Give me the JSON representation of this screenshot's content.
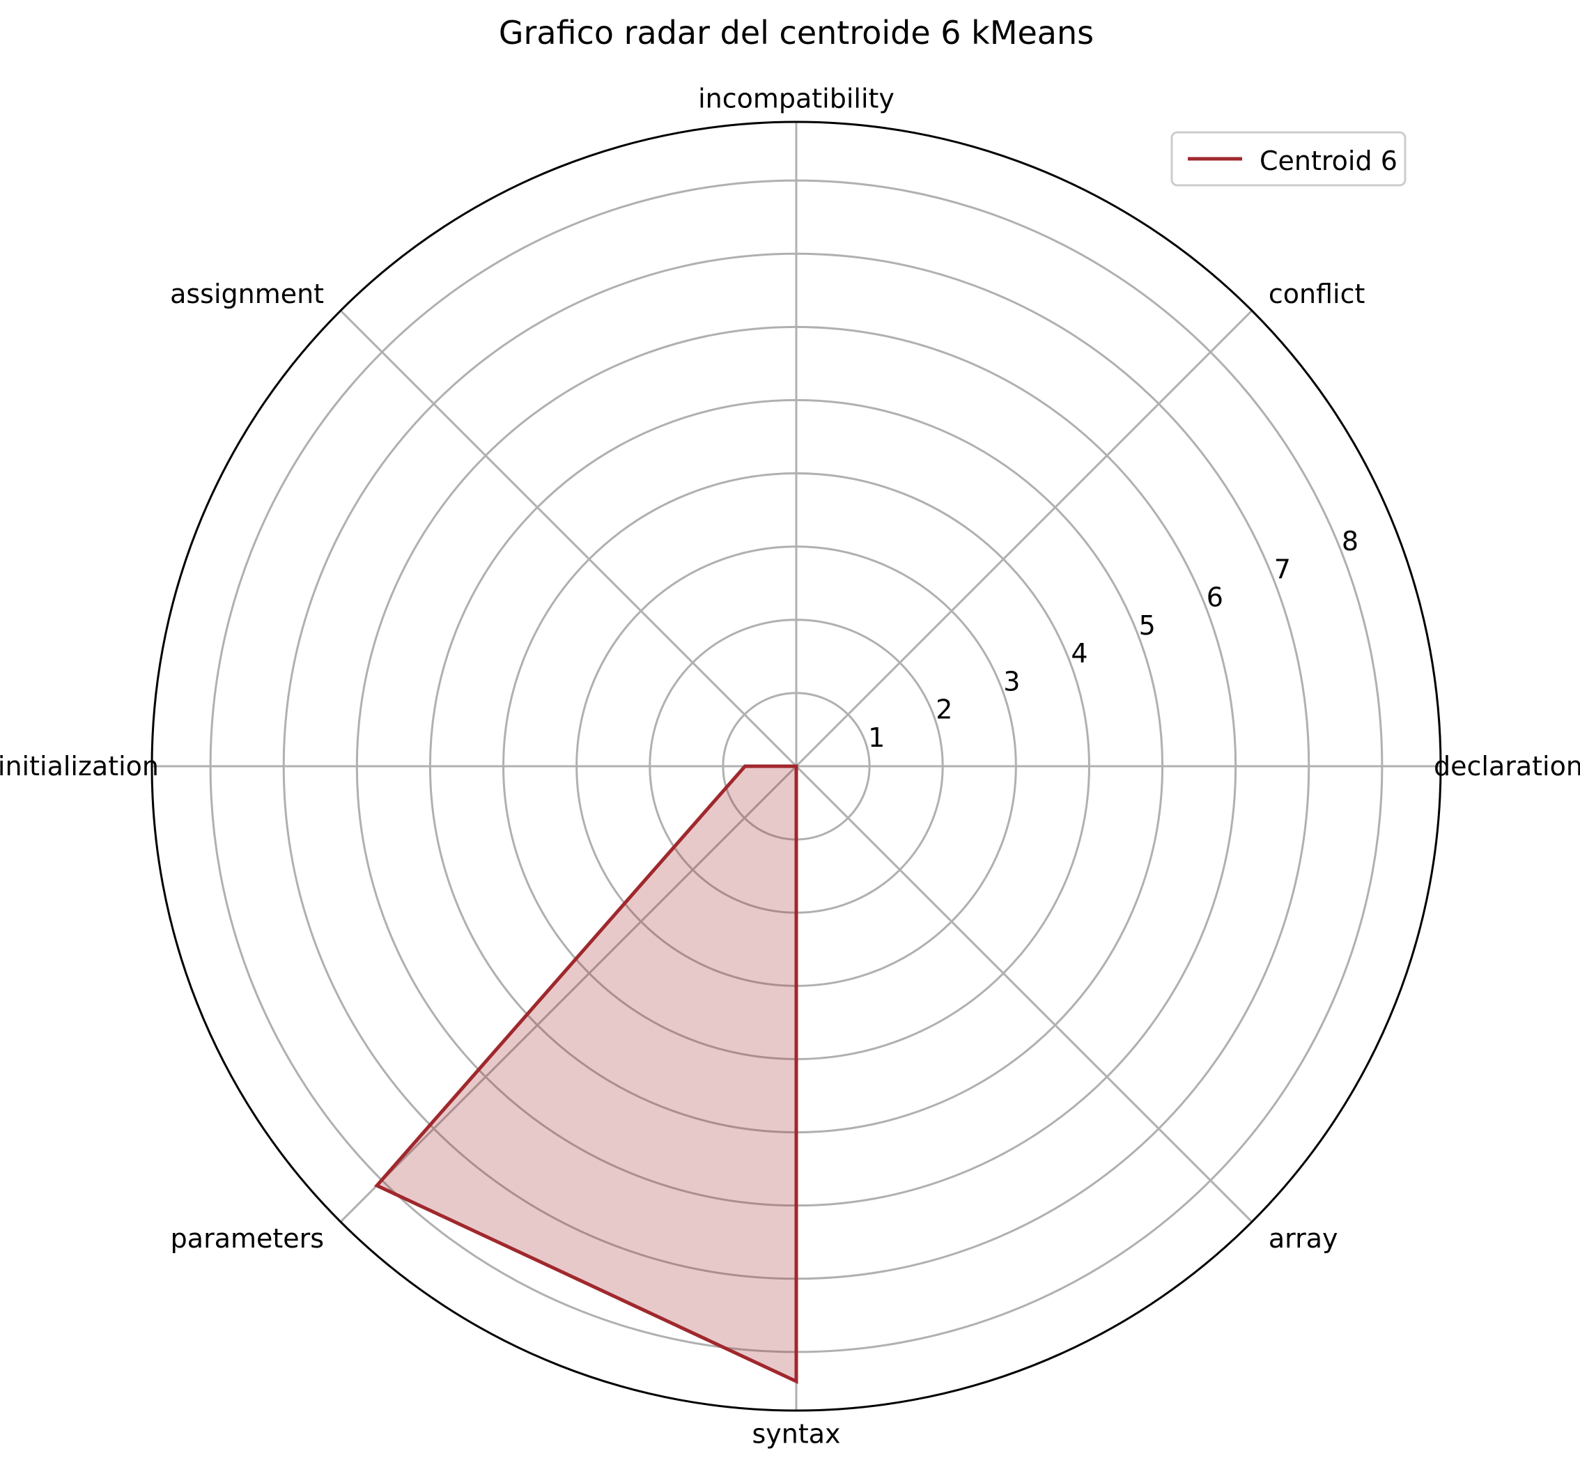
{
  "chart_data": {
    "type": "radar",
    "title": "Grafico radar del centroide 6 kMeans",
    "categories": [
      "incompatibility",
      "conflict",
      "declaration",
      "array",
      "syntax",
      "parameters",
      "initialization",
      "assignment"
    ],
    "series": [
      {
        "name": "Centroid 6",
        "values": [
          0,
          0,
          0,
          0,
          8.4,
          8.1,
          0.7,
          0
        ],
        "color": "#a0282d",
        "fill": "rgba(160,40,45,0.25)"
      }
    ],
    "radial_ticks": [
      "1",
      "2",
      "3",
      "4",
      "5",
      "6",
      "7",
      "8"
    ],
    "rlim": [
      0,
      8.8
    ],
    "grid": true,
    "legend": {
      "position": "top-right"
    },
    "colors": {
      "grid": "#b0b0b0",
      "outline": "#000000"
    }
  }
}
